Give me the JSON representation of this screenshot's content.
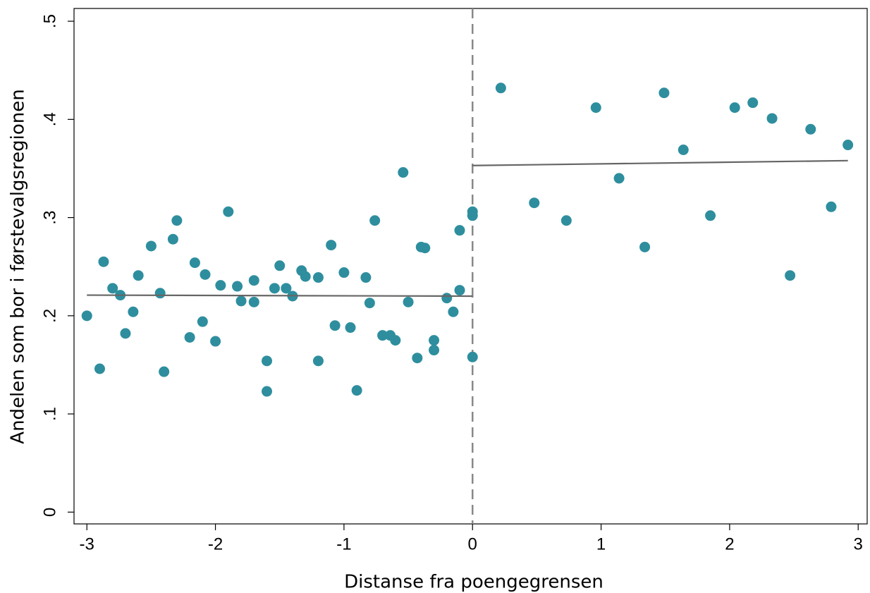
{
  "chart_data": {
    "type": "scatter",
    "xlabel": "Distanse fra poengegrensen",
    "ylabel": "Andelen som bor i førstevalgsregionen",
    "xlim": [
      -3.1,
      3.07
    ],
    "ylim": [
      -0.012,
      0.513
    ],
    "xticks": [
      -3,
      -2,
      -1,
      0,
      1,
      2,
      3
    ],
    "yticks": [
      0,
      {
        "value": 0.1,
        "label": ".1"
      },
      {
        "value": 0.2,
        "label": ".2"
      },
      {
        "value": 0.3,
        "label": ".3"
      },
      {
        "value": 0.4,
        "label": ".4"
      },
      {
        "value": 0.5,
        "label": ".5"
      }
    ],
    "vline": {
      "x": 0,
      "color": "#888888",
      "style": "dashed"
    },
    "series": [
      {
        "type": "scatter",
        "color": "#2e8e9e",
        "x": [
          -3.0,
          -2.9,
          -2.87,
          -2.8,
          -2.74,
          -2.7,
          -2.64,
          -2.6,
          -2.5,
          -2.43,
          -2.4,
          -2.33,
          -2.3,
          -2.2,
          -2.16,
          -2.1,
          -2.08,
          -2.0,
          -1.96,
          -1.9,
          -1.83,
          -1.8,
          -1.7,
          -1.7,
          -1.6,
          -1.6,
          -1.54,
          -1.5,
          -1.45,
          -1.4,
          -1.33,
          -1.3,
          -1.2,
          -1.2,
          -1.1,
          -1.07,
          -1.0,
          -0.95,
          -0.9,
          -0.83,
          -0.8,
          -0.76,
          -0.7,
          -0.64,
          -0.6,
          -0.54,
          -0.5,
          -0.43,
          -0.4,
          -0.37,
          -0.3,
          -0.3,
          -0.2,
          -0.15,
          -0.1,
          -0.1,
          0.0,
          0.0,
          0.0,
          0.22,
          0.48,
          0.73,
          0.96,
          1.14,
          1.34,
          1.49,
          1.64,
          1.85,
          2.04,
          2.18,
          2.33,
          2.47,
          2.63,
          2.79,
          2.92
        ],
        "y": [
          0.2,
          0.146,
          0.255,
          0.228,
          0.221,
          0.182,
          0.204,
          0.241,
          0.271,
          0.223,
          0.143,
          0.278,
          0.297,
          0.178,
          0.254,
          0.194,
          0.242,
          0.174,
          0.231,
          0.306,
          0.23,
          0.215,
          0.214,
          0.236,
          0.154,
          0.123,
          0.228,
          0.251,
          0.228,
          0.22,
          0.246,
          0.24,
          0.239,
          0.154,
          0.272,
          0.19,
          0.244,
          0.188,
          0.124,
          0.239,
          0.213,
          0.297,
          0.18,
          0.18,
          0.175,
          0.346,
          0.214,
          0.157,
          0.27,
          0.269,
          0.175,
          0.165,
          0.218,
          0.204,
          0.226,
          0.287,
          0.306,
          0.302,
          0.158,
          0.432,
          0.315,
          0.297,
          0.412,
          0.34,
          0.27,
          0.427,
          0.369,
          0.302,
          0.412,
          0.417,
          0.401,
          0.241,
          0.39,
          0.311,
          0.374
        ]
      },
      {
        "type": "line",
        "color": "#666666",
        "x": [
          -3.0,
          0.0
        ],
        "y": [
          0.221,
          0.22
        ]
      },
      {
        "type": "line",
        "color": "#666666",
        "x": [
          0.0,
          2.92
        ],
        "y": [
          0.353,
          0.358
        ]
      }
    ]
  }
}
